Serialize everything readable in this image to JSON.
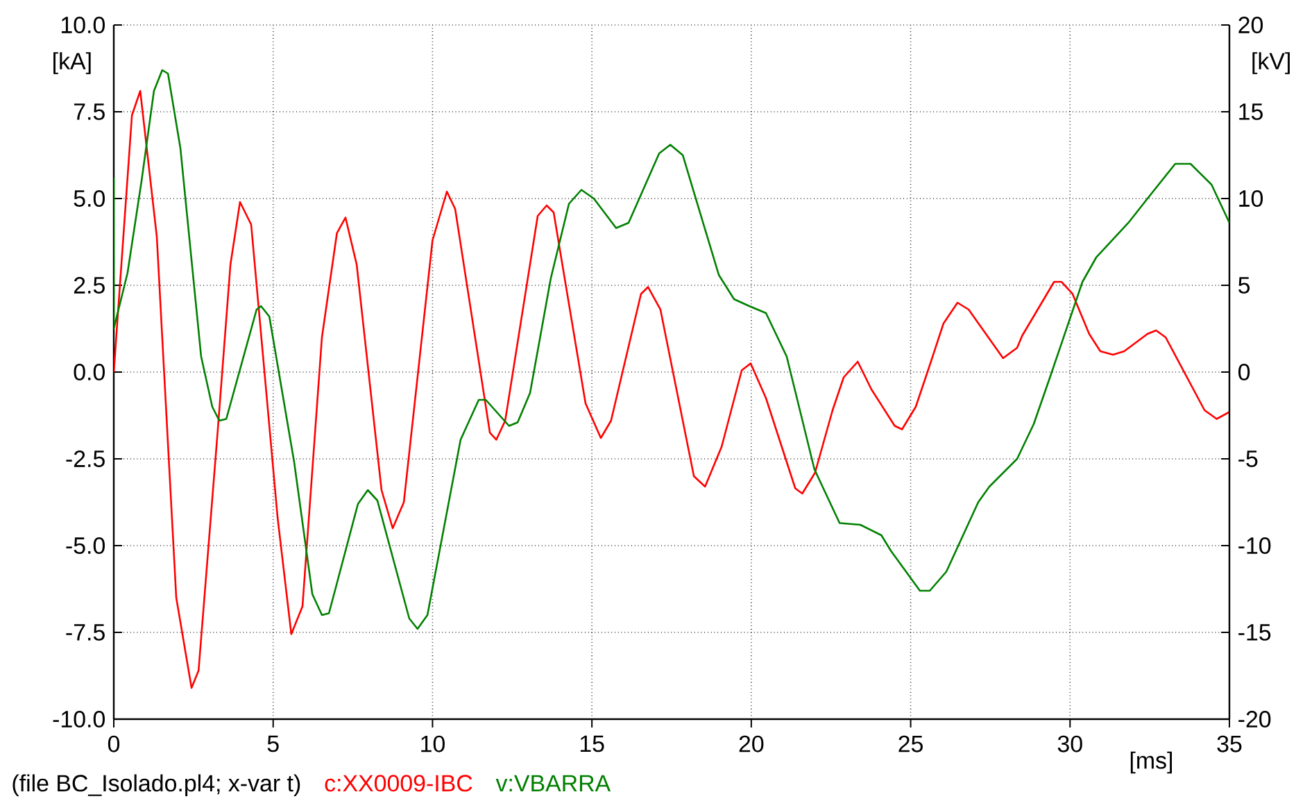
{
  "chart_data": {
    "type": "line",
    "xlabel": "[ms]",
    "ylabel": "[kA]",
    "y2label": "[kV]",
    "annotations": [
      "(file BC_Isolado.pl4; x-var t)"
    ],
    "xlim": [
      0,
      35
    ],
    "xticks": [
      0,
      5,
      10,
      15,
      20,
      25,
      30,
      35
    ],
    "ylim": [
      -10,
      10
    ],
    "yticks": [
      {
        "value": -10,
        "label": "-10.0"
      },
      {
        "value": -7.5,
        "label": "-7.5"
      },
      {
        "value": -5,
        "label": "-5.0"
      },
      {
        "value": -2.5,
        "label": "-2.5"
      },
      {
        "value": 0,
        "label": "0.0"
      },
      {
        "value": 2.5,
        "label": "2.5"
      },
      {
        "value": 5,
        "label": "5.0"
      },
      {
        "value": 7.5,
        "label": "7.5"
      },
      {
        "value": 10,
        "label": "10.0"
      }
    ],
    "y2lim": [
      -20,
      20
    ],
    "y2ticks": [
      -20,
      -15,
      -10,
      -5,
      0,
      5,
      10,
      15,
      20
    ],
    "grid": true,
    "legend": "bottom",
    "line_style": "solid",
    "series": [
      {
        "name": "c:XX0009-IBC",
        "color": "#ff0000",
        "x": [
          0,
          0.57,
          0.83,
          1.35,
          1.96,
          2.44,
          2.66,
          3.26,
          3.66,
          3.96,
          4.31,
          5.14,
          5.57,
          5.92,
          6.53,
          7.0,
          7.27,
          7.62,
          8.4,
          8.75,
          9.1,
          10.0,
          10.45,
          10.71,
          11.8,
          12.0,
          12.28,
          13.3,
          13.58,
          13.8,
          14.8,
          15.28,
          15.6,
          16.54,
          16.76,
          17.15,
          18.2,
          18.55,
          19.07,
          19.7,
          19.98,
          20.46,
          21.38,
          21.6,
          22.0,
          22.55,
          22.9,
          23.34,
          23.77,
          24.5,
          24.73,
          25.16,
          25.6,
          26.03,
          26.47,
          26.82,
          27.9,
          28.34,
          28.5,
          29.5,
          29.73,
          30.08,
          30.6,
          30.95,
          31.35,
          31.7,
          32.43,
          32.7,
          33.0,
          34.22,
          34.6,
          35
        ],
        "values": [
          0,
          7.4,
          8.1,
          3.9,
          -6.5,
          -9.1,
          -8.6,
          -1.7,
          3.1,
          4.9,
          4.25,
          -4.2,
          -7.55,
          -6.75,
          1.0,
          4.0,
          4.45,
          3.1,
          -3.4,
          -4.5,
          -3.75,
          3.8,
          5.2,
          4.7,
          -1.75,
          -1.95,
          -1.4,
          4.5,
          4.8,
          4.6,
          -0.9,
          -1.9,
          -1.4,
          2.25,
          2.45,
          1.8,
          -3.0,
          -3.3,
          -2.15,
          0.05,
          0.25,
          -0.75,
          -3.35,
          -3.5,
          -2.9,
          -1.1,
          -0.15,
          0.3,
          -0.5,
          -1.55,
          -1.65,
          -1.0,
          0.2,
          1.4,
          2.0,
          1.8,
          0.4,
          0.7,
          1.05,
          2.6,
          2.6,
          2.25,
          1.1,
          0.6,
          0.5,
          0.6,
          1.1,
          1.2,
          1.0,
          -1.1,
          -1.35,
          -1.15
        ]
      },
      {
        "name": "v:VBARRA",
        "color": "#008000",
        "axis": "y2",
        "x": [
          0,
          0,
          0.43,
          0.87,
          1.26,
          1.52,
          1.7,
          2.09,
          2.74,
          3.09,
          3.31,
          3.53,
          4.48,
          4.62,
          4.88,
          5.66,
          6.23,
          6.53,
          6.75,
          7.66,
          7.97,
          8.27,
          9.27,
          9.53,
          9.84,
          10.88,
          11.45,
          11.67,
          12.4,
          12.67,
          13.06,
          13.71,
          14.28,
          14.67,
          15.06,
          15.76,
          16.15,
          17.11,
          17.46,
          17.85,
          18.98,
          19.46,
          19.94,
          20.46,
          21.11,
          21.98,
          22.77,
          23.42,
          24.08,
          24.38,
          25.29,
          25.6,
          26.12,
          27.12,
          27.47,
          28.34,
          28.86,
          29.39,
          30.39,
          30.82,
          31.83,
          32.43,
          33.3,
          33.78,
          34.44,
          35
        ],
        "values": [
          11.2,
          2.5,
          5.7,
          11.0,
          16.2,
          17.4,
          17.2,
          12.9,
          0.9,
          -2.0,
          -2.8,
          -2.7,
          3.6,
          3.8,
          3.2,
          -5.2,
          -12.8,
          -14.0,
          -13.9,
          -7.6,
          -6.8,
          -7.4,
          -14.2,
          -14.8,
          -14.0,
          -3.9,
          -1.6,
          -1.6,
          -3.1,
          -2.9,
          -1.2,
          5.4,
          9.7,
          10.5,
          10.0,
          8.3,
          8.6,
          12.6,
          13.1,
          12.5,
          5.6,
          4.2,
          3.8,
          3.4,
          0.9,
          -5.6,
          -8.7,
          -8.8,
          -9.4,
          -10.3,
          -12.6,
          -12.6,
          -11.5,
          -7.5,
          -6.6,
          -5.0,
          -3.0,
          -0.2,
          5.2,
          6.6,
          8.6,
          10.0,
          12.0,
          12.0,
          10.8,
          8.6
        ]
      }
    ]
  }
}
